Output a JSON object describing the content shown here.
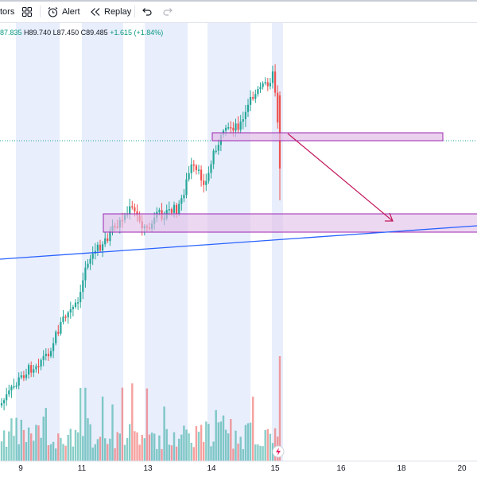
{
  "toolbar": {
    "indicators_label": "tors",
    "alert_label": "Alert",
    "replay_label": "Replay"
  },
  "legend": {
    "open": "87.835",
    "high": "H89.740",
    "low": "L87.450",
    "close": "C89.485",
    "change": "+1.615 (+1.84%)"
  },
  "colors": {
    "up": "#26a69a",
    "down": "#ef5350",
    "session_band": "#e8eefc",
    "zone_fill": "#e1bee7",
    "zone_border": "#9c27b0",
    "arrow": "#c2185b",
    "trendline": "#2962ff"
  },
  "chart_data": {
    "type": "candlestick",
    "x_tick_labels": [
      "9",
      "11",
      "13",
      "14",
      "15",
      "16",
      "18",
      "20"
    ],
    "annotations": [
      "supply-zone-rectangle",
      "demand-zone-rectangle",
      "down-arrow",
      "rising-trendline"
    ],
    "icons": [
      "lightning-icon"
    ]
  }
}
